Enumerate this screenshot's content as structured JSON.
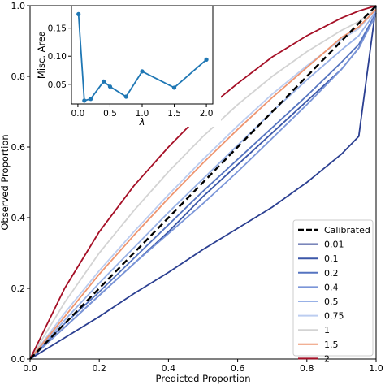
{
  "chart_data": [
    {
      "type": "line",
      "xlabel": "Predicted Proportion",
      "ylabel": "Observed Proportion",
      "xlim": [
        0,
        1
      ],
      "ylim": [
        0,
        1
      ],
      "xticks": [
        "0.0",
        "0.2",
        "0.4",
        "0.6",
        "0.8",
        "1.0"
      ],
      "yticks": [
        "0.0",
        "0.2",
        "0.4",
        "0.6",
        "0.8",
        "1.0"
      ],
      "grid": false,
      "legend_position": "bottom-right",
      "reference_line": {
        "name": "Calibrated",
        "color": "#000000",
        "style": "dashed",
        "points": [
          [
            0,
            0
          ],
          [
            1,
            1
          ]
        ]
      },
      "x": [
        0,
        0.1,
        0.2,
        0.3,
        0.4,
        0.5,
        0.6,
        0.7,
        0.8,
        0.9,
        0.95,
        1.0
      ],
      "series": [
        {
          "name": "0.01",
          "color": "#2b3f91",
          "values": [
            0,
            0.06,
            0.12,
            0.185,
            0.245,
            0.31,
            0.37,
            0.43,
            0.5,
            0.58,
            0.63,
            1.0
          ]
        },
        {
          "name": "0.1",
          "color": "#3b57a8",
          "values": [
            0,
            0.09,
            0.18,
            0.27,
            0.36,
            0.46,
            0.55,
            0.64,
            0.73,
            0.82,
            0.88,
            0.98
          ]
        },
        {
          "name": "0.2",
          "color": "#5574c0",
          "values": [
            0,
            0.1,
            0.19,
            0.285,
            0.38,
            0.475,
            0.565,
            0.655,
            0.745,
            0.84,
            0.89,
            0.98
          ]
        },
        {
          "name": "0.4",
          "color": "#7a95d8",
          "values": [
            0,
            0.09,
            0.18,
            0.27,
            0.355,
            0.44,
            0.53,
            0.625,
            0.72,
            0.82,
            0.88,
            0.975
          ]
        },
        {
          "name": "0.5",
          "color": "#98b1e6",
          "values": [
            0,
            0.11,
            0.215,
            0.315,
            0.415,
            0.51,
            0.605,
            0.7,
            0.79,
            0.875,
            0.915,
            0.985
          ]
        },
        {
          "name": "0.75",
          "color": "#bccdf0",
          "values": [
            0,
            0.13,
            0.25,
            0.36,
            0.465,
            0.565,
            0.66,
            0.75,
            0.83,
            0.905,
            0.935,
            0.99
          ]
        },
        {
          "name": "1",
          "color": "#d3d3d3",
          "values": [
            0,
            0.16,
            0.3,
            0.42,
            0.53,
            0.63,
            0.72,
            0.8,
            0.87,
            0.93,
            0.955,
            0.99
          ]
        },
        {
          "name": "1.5",
          "color": "#ee9570",
          "values": [
            0,
            0.12,
            0.24,
            0.35,
            0.455,
            0.555,
            0.65,
            0.74,
            0.825,
            0.91,
            0.94,
            0.99
          ]
        },
        {
          "name": "2",
          "color": "#a50f26",
          "values": [
            0,
            0.2,
            0.36,
            0.49,
            0.6,
            0.7,
            0.78,
            0.855,
            0.915,
            0.965,
            0.985,
            1.0
          ]
        }
      ]
    },
    {
      "type": "line",
      "xlabel": "λ",
      "ylabel": "Misc. Area",
      "xlim": [
        -0.1,
        2.1
      ],
      "ylim": [
        0.015,
        0.19
      ],
      "xticks": [
        "0.0",
        "0.5",
        "1.0",
        "1.5",
        "2.0"
      ],
      "yticks": [
        "0.05",
        "0.10",
        "0.15"
      ],
      "series": [
        {
          "color": "#1f77b4",
          "x": [
            0.01,
            0.1,
            0.2,
            0.4,
            0.5,
            0.75,
            1.0,
            1.5,
            2.0
          ],
          "values": [
            0.175,
            0.021,
            0.024,
            0.055,
            0.046,
            0.028,
            0.073,
            0.044,
            0.094
          ]
        }
      ]
    }
  ]
}
